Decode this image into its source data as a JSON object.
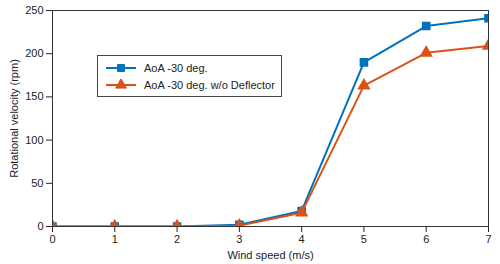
{
  "chart_data": {
    "type": "line",
    "x_label": "Wind speed (m/s)",
    "y_label": "Rotational velocity (rpm)",
    "x": [
      0,
      1,
      2,
      3,
      4,
      5,
      6,
      7
    ],
    "series": [
      {
        "name": "AoA -30 deg.",
        "color": "#0072bd",
        "marker": "square",
        "line_style": "solid",
        "values": [
          0,
          0,
          0,
          2,
          18,
          190,
          232,
          241
        ]
      },
      {
        "name": "AoA -30 deg. w/o Deflector",
        "color": "#d95319",
        "marker": "triangle",
        "line_style": "solid",
        "values": [
          0,
          0,
          0,
          1,
          16,
          163,
          201,
          209
        ]
      }
    ],
    "xlim": [
      0,
      7
    ],
    "xticks": [
      0,
      1,
      2,
      3,
      4,
      5,
      6,
      7
    ],
    "ylim": [
      0,
      250
    ],
    "yticks": [
      0,
      50,
      100,
      150,
      200,
      250
    ],
    "grid": false,
    "legend": "upper left"
  }
}
